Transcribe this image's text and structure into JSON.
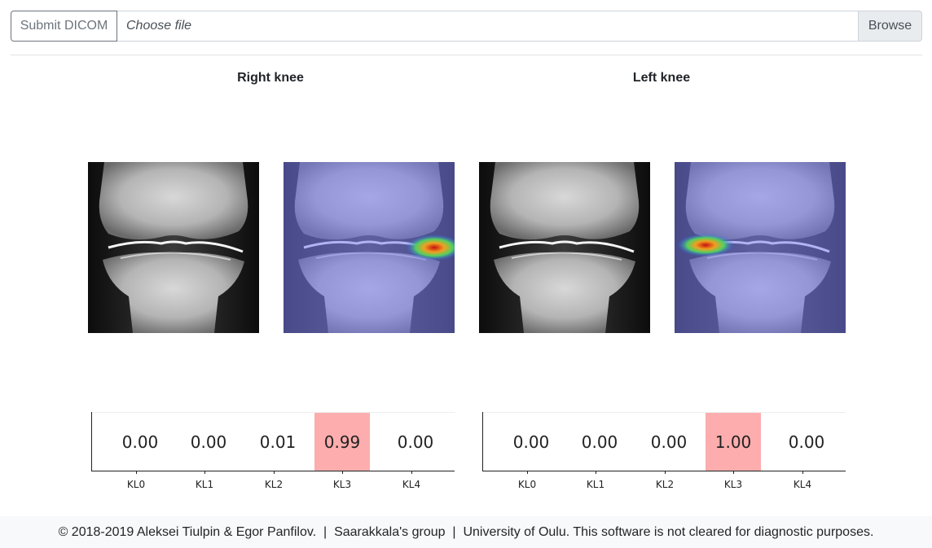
{
  "upload": {
    "submit_label": "Submit DICOM",
    "file_placeholder": "Choose file",
    "browse_label": "Browse"
  },
  "knees": [
    {
      "title": "Right knee",
      "probabilities": [
        "0.00",
        "0.00",
        "0.01",
        "0.99",
        "0.00"
      ],
      "highlight_index": 3
    },
    {
      "title": "Left knee",
      "probabilities": [
        "0.00",
        "0.00",
        "0.00",
        "1.00",
        "0.00"
      ],
      "highlight_index": 3
    }
  ],
  "grades": [
    "KL0",
    "KL1",
    "KL2",
    "KL3",
    "KL4"
  ],
  "colors": {
    "highlight": "#fdadad",
    "heatmap_tint": "#8a8cf0"
  },
  "footer": {
    "text": "© 2018-2019 Aleksei Tiulpin & Egor Panfilov.  |  Saarakkala's group  |  University of Oulu. This software is not cleared for diagnostic purposes."
  }
}
